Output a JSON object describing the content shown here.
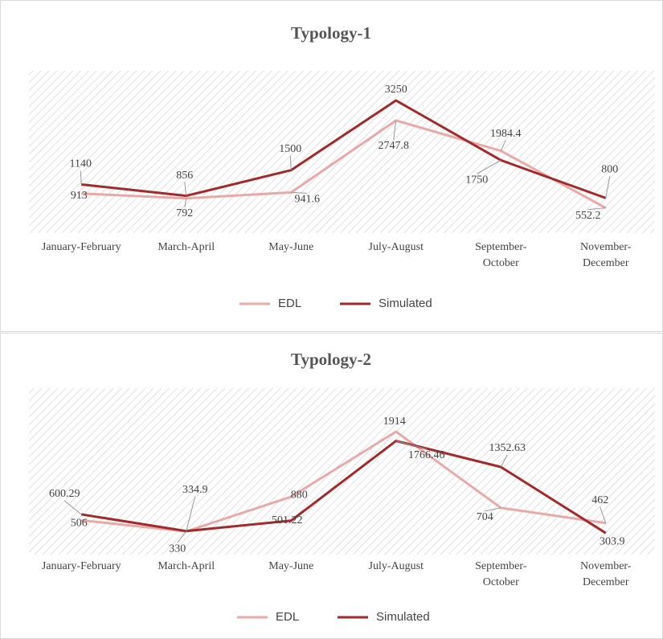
{
  "chart_data": [
    {
      "type": "line",
      "title": "Typology-1",
      "categories": [
        "January-February",
        "March-April",
        "May-June",
        "July-August",
        "September-October",
        "November-December"
      ],
      "series": [
        {
          "name": "EDL",
          "color": "#e8aaa8",
          "values": [
            913,
            792,
            941.6,
            2747.8,
            1984.4,
            552.2
          ]
        },
        {
          "name": "Simulated",
          "color": "#a12a2c",
          "values": [
            1140,
            856,
            1500,
            3250,
            1750,
            800
          ]
        }
      ]
    },
    {
      "type": "line",
      "title": "Typology-2",
      "categories": [
        "January-February",
        "March-April",
        "May-June",
        "July-August",
        "September-October",
        "November-December"
      ],
      "series": [
        {
          "name": "EDL",
          "color": "#e8aaa8",
          "values": [
            506,
            330,
            880,
            1914,
            704,
            462
          ]
        },
        {
          "name": "Simulated",
          "color": "#a12a2c",
          "values": [
            600.29,
            334.9,
            501.22,
            1766.46,
            1352.63,
            303.9
          ]
        }
      ]
    }
  ]
}
